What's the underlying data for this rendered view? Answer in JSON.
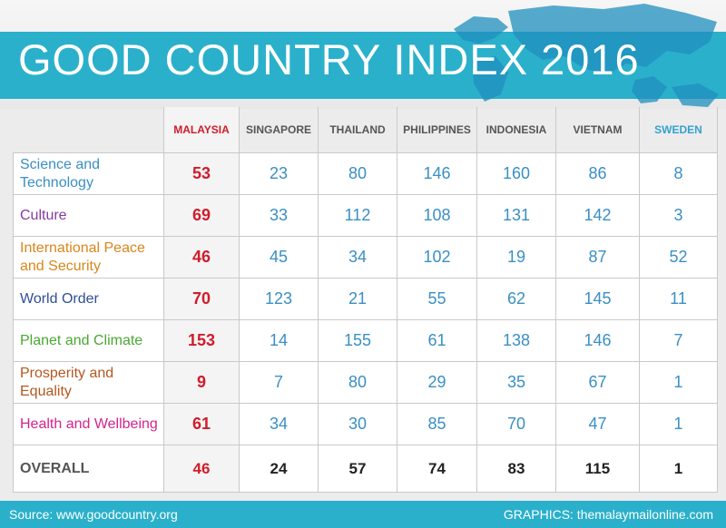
{
  "title": "GOOD COUNTRY INDEX 2016",
  "colors": {
    "banner": "#2bb0cb",
    "highlight": "#d01c2b",
    "value": "#3a8fc4",
    "sweden": "#33a1cf"
  },
  "chart_data": {
    "type": "table",
    "title": "GOOD COUNTRY INDEX 2016",
    "columns": [
      "MALAYSIA",
      "SINGAPORE",
      "THAILAND",
      "PHILIPPINES",
      "INDONESIA",
      "VIETNAM",
      "SWEDEN"
    ],
    "rows": [
      {
        "label": "Science and Technology",
        "color": "#3a8fc4",
        "values": [
          53,
          23,
          80,
          146,
          160,
          86,
          8
        ]
      },
      {
        "label": "Culture",
        "color": "#8a3aa0",
        "values": [
          69,
          33,
          112,
          108,
          131,
          142,
          3
        ]
      },
      {
        "label": "International Peace and Security",
        "color": "#d9861a",
        "values": [
          46,
          45,
          34,
          102,
          19,
          87,
          52
        ]
      },
      {
        "label": "World Order",
        "color": "#2f4e9a",
        "values": [
          70,
          123,
          21,
          55,
          62,
          145,
          11
        ]
      },
      {
        "label": "Planet and Climate",
        "color": "#4aa832",
        "values": [
          153,
          14,
          155,
          61,
          138,
          146,
          7
        ]
      },
      {
        "label": "Prosperity and Equality",
        "color": "#b5571e",
        "values": [
          9,
          7,
          80,
          29,
          35,
          67,
          1
        ]
      },
      {
        "label": "Health and Wellbeing",
        "color": "#d6238f",
        "values": [
          61,
          34,
          30,
          85,
          70,
          47,
          1
        ]
      }
    ],
    "overall": {
      "label": "OVERALL",
      "values": [
        46,
        24,
        57,
        74,
        83,
        115,
        1
      ]
    }
  },
  "footer": {
    "source": "Source: www.goodcountry.org",
    "graphics": "GRAPHICS: themalaymailonline.com"
  }
}
